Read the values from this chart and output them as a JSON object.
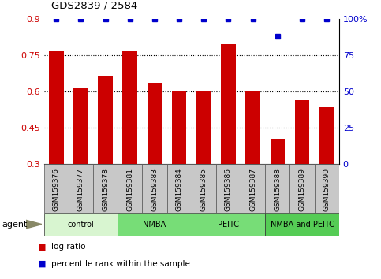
{
  "title": "GDS2839 / 2584",
  "samples": [
    "GSM159376",
    "GSM159377",
    "GSM159378",
    "GSM159381",
    "GSM159383",
    "GSM159384",
    "GSM159385",
    "GSM159386",
    "GSM159387",
    "GSM159388",
    "GSM159389",
    "GSM159390"
  ],
  "bar_values": [
    0.765,
    0.615,
    0.665,
    0.765,
    0.635,
    0.605,
    0.605,
    0.795,
    0.605,
    0.405,
    0.565,
    0.535
  ],
  "percentile_values": [
    100,
    100,
    100,
    100,
    100,
    100,
    100,
    100,
    100,
    88,
    100,
    100
  ],
  "bar_color": "#cc0000",
  "percentile_color": "#0000cc",
  "ymin": 0.3,
  "ymax": 0.9,
  "yticks": [
    0.3,
    0.45,
    0.6,
    0.75,
    0.9
  ],
  "ytick_labels": [
    "0.3",
    "0.45",
    "0.6",
    "0.75",
    "0.9"
  ],
  "y2min": 0,
  "y2max": 100,
  "y2ticks": [
    0,
    25,
    50,
    75,
    100
  ],
  "y2tick_labels": [
    "0",
    "25",
    "50",
    "75",
    "100%"
  ],
  "groups": [
    {
      "label": "control",
      "start": 0,
      "end": 3,
      "color": "#d8f5d0"
    },
    {
      "label": "NMBA",
      "start": 3,
      "end": 6,
      "color": "#77dd77"
    },
    {
      "label": "PEITC",
      "start": 6,
      "end": 9,
      "color": "#77dd77"
    },
    {
      "label": "NMBA and PEITC",
      "start": 9,
      "end": 12,
      "color": "#55cc55"
    }
  ],
  "agent_label": "agent",
  "legend_items": [
    {
      "color": "#cc0000",
      "label": "log ratio"
    },
    {
      "color": "#0000cc",
      "label": "percentile rank within the sample"
    }
  ],
  "background_color": "#ffffff",
  "plot_bg": "#ffffff",
  "label_bg": "#c8c8c8",
  "grid_yticks": [
    0.45,
    0.6,
    0.75
  ]
}
